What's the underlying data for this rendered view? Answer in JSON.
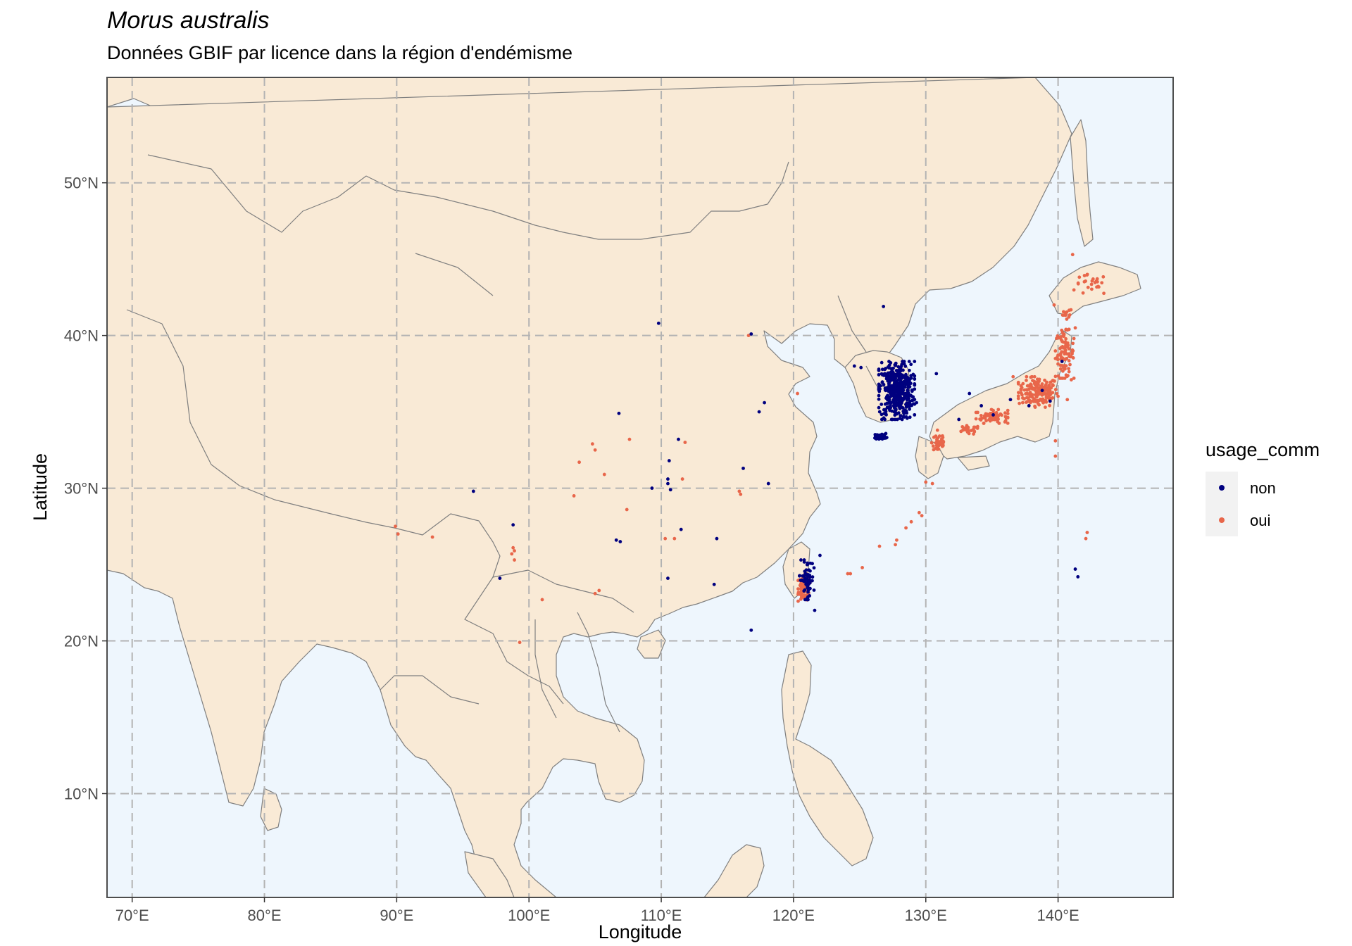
{
  "title": "Morus australis",
  "subtitle": "Données GBIF par licence dans la région d'endémisme",
  "colors": {
    "ocean": "#eef6fd",
    "land": "#f9ead6",
    "border": "#7f7f7f",
    "grid": "#b3b3b3",
    "panel_border": "#4d4d4d",
    "non": "#00007f",
    "oui": "#e8664a"
  },
  "chart_data": {
    "type": "scatter",
    "xlabel": "Longitude",
    "ylabel": "Latitude",
    "xlim": [
      68.1,
      148.7
    ],
    "ylim": [
      3.2,
      56.9
    ],
    "x_ticks": [
      70,
      80,
      90,
      100,
      110,
      120,
      130,
      140
    ],
    "x_tick_labels": [
      "70°E",
      "80°E",
      "90°E",
      "100°E",
      "110°E",
      "120°E",
      "130°E",
      "140°E"
    ],
    "y_ticks": [
      10,
      20,
      30,
      40,
      50
    ],
    "y_tick_labels": [
      "10°N",
      "20°N",
      "30°N",
      "40°N",
      "50°N"
    ],
    "grid": true,
    "legend_position": "right",
    "legend": {
      "title": "usage_comm",
      "entries": [
        {
          "key": "non",
          "label": "non"
        },
        {
          "key": "oui",
          "label": "oui"
        }
      ]
    },
    "series": [
      {
        "name": "non",
        "clusters": [
          {
            "center": [
              127.8,
              36.4
            ],
            "spread": [
              1.35,
              1.9
            ],
            "count": 420
          },
          {
            "center": [
              126.6,
              33.4
            ],
            "spread": [
              0.45,
              0.18
            ],
            "count": 40
          },
          {
            "center": [
              121.0,
              24.0
            ],
            "spread": [
              0.55,
              1.3
            ],
            "count": 60
          }
        ],
        "points": [
          [
            126.8,
            41.9
          ],
          [
            109.8,
            40.8
          ],
          [
            116.8,
            40.1
          ],
          [
            117.4,
            35.0
          ],
          [
            117.8,
            35.6
          ],
          [
            106.8,
            34.9
          ],
          [
            111.3,
            33.2
          ],
          [
            110.6,
            31.8
          ],
          [
            109.3,
            30.0
          ],
          [
            110.5,
            30.3
          ],
          [
            110.7,
            29.9
          ],
          [
            110.5,
            30.6
          ],
          [
            116.2,
            31.3
          ],
          [
            118.1,
            30.3
          ],
          [
            95.8,
            29.8
          ],
          [
            98.8,
            27.6
          ],
          [
            106.6,
            26.6
          ],
          [
            106.9,
            26.5
          ],
          [
            111.5,
            27.3
          ],
          [
            114.2,
            26.7
          ],
          [
            97.8,
            24.1
          ],
          [
            110.5,
            24.1
          ],
          [
            114.0,
            23.7
          ],
          [
            116.8,
            20.7
          ],
          [
            121.6,
            22.0
          ],
          [
            122.0,
            25.6
          ],
          [
            130.8,
            37.5
          ],
          [
            125.1,
            37.9
          ],
          [
            124.6,
            38.0
          ],
          [
            133.3,
            36.2
          ],
          [
            134.2,
            35.4
          ],
          [
            135.1,
            34.8
          ],
          [
            138.8,
            36.4
          ],
          [
            139.4,
            35.7
          ],
          [
            140.3,
            38.3
          ],
          [
            141.3,
            24.7
          ],
          [
            141.5,
            24.2
          ],
          [
            128.5,
            35.0
          ],
          [
            129.3,
            35.6
          ],
          [
            136.4,
            35.8
          ],
          [
            137.8,
            35.4
          ],
          [
            132.5,
            34.5
          ]
        ]
      },
      {
        "name": "oui",
        "clusters": [
          {
            "center": [
              138.5,
              36.3
            ],
            "spread": [
              1.5,
              1.0
            ],
            "count": 170
          },
          {
            "center": [
              135.0,
              34.7
            ],
            "spread": [
              1.2,
              0.45
            ],
            "count": 70
          },
          {
            "center": [
              140.5,
              38.8
            ],
            "spread": [
              0.7,
              1.6
            ],
            "count": 90
          },
          {
            "center": [
              131.0,
              33.0
            ],
            "spread": [
              0.55,
              0.8
            ],
            "count": 40
          },
          {
            "center": [
              133.2,
              33.8
            ],
            "spread": [
              0.9,
              0.3
            ],
            "count": 25
          },
          {
            "center": [
              142.5,
              43.3
            ],
            "spread": [
              1.3,
              0.7
            ],
            "count": 25
          },
          {
            "center": [
              140.6,
              41.4
            ],
            "spread": [
              0.5,
              0.4
            ],
            "count": 12
          },
          {
            "center": [
              120.8,
              23.5
            ],
            "spread": [
              0.45,
              0.9
            ],
            "count": 60
          }
        ],
        "points": [
          [
            116.6,
            40.0
          ],
          [
            104.8,
            32.9
          ],
          [
            105.0,
            32.5
          ],
          [
            107.6,
            33.2
          ],
          [
            111.8,
            33.0
          ],
          [
            103.8,
            31.7
          ],
          [
            105.7,
            30.9
          ],
          [
            111.6,
            30.6
          ],
          [
            103.4,
            29.5
          ],
          [
            107.4,
            28.6
          ],
          [
            116.0,
            29.6
          ],
          [
            115.9,
            29.8
          ],
          [
            111.0,
            26.7
          ],
          [
            110.3,
            26.7
          ],
          [
            89.9,
            27.5
          ],
          [
            90.1,
            27.0
          ],
          [
            92.7,
            26.8
          ],
          [
            98.8,
            26.1
          ],
          [
            98.7,
            25.7
          ],
          [
            98.9,
            25.3
          ],
          [
            98.9,
            25.9
          ],
          [
            101.0,
            22.7
          ],
          [
            105.0,
            23.1
          ],
          [
            105.3,
            23.3
          ],
          [
            99.3,
            19.9
          ],
          [
            120.3,
            36.2
          ],
          [
            124.1,
            24.4
          ],
          [
            124.3,
            24.4
          ],
          [
            125.2,
            24.8
          ],
          [
            126.5,
            26.2
          ],
          [
            127.7,
            26.3
          ],
          [
            127.8,
            26.6
          ],
          [
            128.5,
            27.4
          ],
          [
            128.9,
            27.8
          ],
          [
            129.5,
            28.4
          ],
          [
            129.7,
            28.2
          ],
          [
            130.0,
            30.4
          ],
          [
            130.5,
            30.3
          ],
          [
            142.2,
            27.1
          ],
          [
            142.1,
            26.7
          ],
          [
            141.1,
            45.3
          ],
          [
            139.8,
            32.1
          ],
          [
            139.8,
            33.1
          ],
          [
            140.7,
            35.8
          ],
          [
            141.0,
            37.1
          ],
          [
            139.7,
            42.0
          ],
          [
            137.2,
            36.7
          ],
          [
            136.6,
            37.3
          ],
          [
            141.2,
            39.8
          ],
          [
            141.3,
            40.5
          ]
        ]
      }
    ]
  }
}
